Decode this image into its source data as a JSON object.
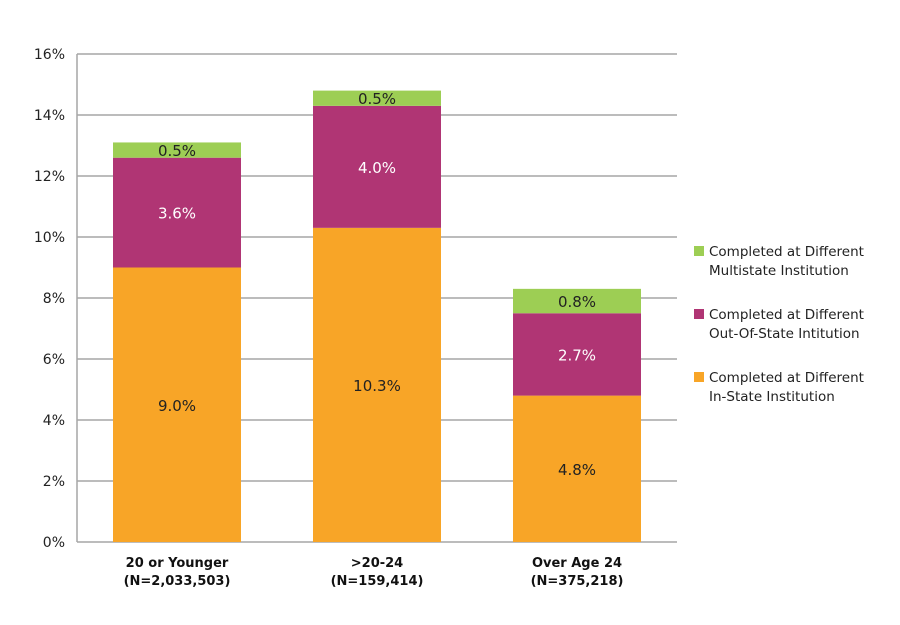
{
  "chart_data": {
    "type": "bar",
    "stacked": true,
    "categories": [
      [
        "20 or Younger",
        "(N=2,033,503)"
      ],
      [
        ">20-24",
        "(N=159,414)"
      ],
      [
        "Over Age 24",
        "(N=375,218)"
      ]
    ],
    "series": [
      {
        "name": "Completed at Different In-State Institution",
        "legend_lines": [
          "Completed at Different",
          "In-State Institution"
        ],
        "color": "#F8A527",
        "label_color": "#222222",
        "values": [
          9.0,
          10.3,
          4.8
        ],
        "labels": [
          "9.0%",
          "10.3%",
          "4.8%"
        ]
      },
      {
        "name": "Completed at Different Out-Of-State Intitution",
        "legend_lines": [
          "Completed at Different",
          "Out-Of-State Intitution"
        ],
        "color": "#B03574",
        "label_color": "#FFFFFF",
        "values": [
          3.6,
          4.0,
          2.7
        ],
        "labels": [
          "3.6%",
          "4.0%",
          "2.7%"
        ]
      },
      {
        "name": "Completed at Different Multistate Institution",
        "legend_lines": [
          "Completed at Different",
          "Multistate Institution"
        ],
        "color": "#9DCE54",
        "label_color": "#222222",
        "values": [
          0.5,
          0.5,
          0.8
        ],
        "labels": [
          "0.5%",
          "0.5%",
          "0.8%"
        ]
      }
    ],
    "legend_order": [
      2,
      1,
      0
    ],
    "ylim": [
      0,
      16
    ],
    "yticks": [
      "0%",
      "2%",
      "4%",
      "6%",
      "8%",
      "10%",
      "12%",
      "14%",
      "16%"
    ],
    "grid": true,
    "legend_position": "right",
    "title": "",
    "xlabel": "",
    "ylabel": ""
  }
}
